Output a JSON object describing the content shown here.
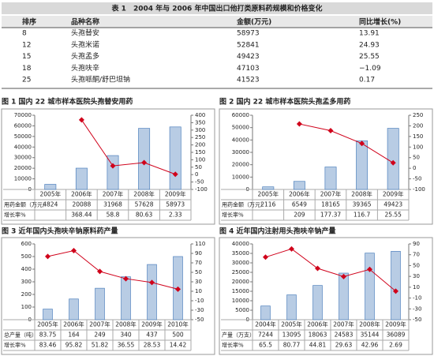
{
  "table": {
    "title": "表 1　2004 年与 2006 年中国出口他打类原料药规模和价格变化",
    "header": [
      "排序",
      "品种名称",
      "金额(万元)",
      "同比增长(%)"
    ],
    "rows": [
      [
        "8",
        "头孢替安",
        "58973",
        "13.91"
      ],
      [
        "12",
        "头孢米诺",
        "52841",
        "24.93"
      ],
      [
        "15",
        "头孢孟多",
        "49423",
        "25.55"
      ],
      [
        "18",
        "头孢呋辛",
        "47103",
        "−1.09"
      ],
      [
        "25",
        "头孢哌酮/舒巴坦钠",
        "41523",
        "0.17"
      ]
    ]
  },
  "chart_data": [
    {
      "type": "bar-line",
      "title": "图 1  国内 22 城市样本医院头孢替安用药",
      "categories": [
        "2005年",
        "2006年",
        "2007年",
        "2008年",
        "2009年"
      ],
      "series": [
        {
          "name": "用药金额（万元）",
          "color": "#b8cce4",
          "values": [
            4824,
            20088,
            31968,
            57628,
            58973
          ]
        },
        {
          "name": "增长率%",
          "color": "#d0021b",
          "axis": "y2",
          "values": [
            null,
            368.44,
            58.8,
            80.63,
            2.33
          ]
        }
      ],
      "ylim": [
        0,
        70000
      ],
      "yticks": [
        0,
        10000,
        20000,
        30000,
        40000,
        50000,
        60000,
        70000
      ],
      "y2lim": [
        -100,
        400
      ],
      "y2ticks": [
        -100,
        -50,
        0,
        50,
        100,
        150,
        200,
        250,
        300,
        350,
        400
      ]
    },
    {
      "type": "bar-line",
      "title": "图 2  国内 22 城市样本医院头孢孟多用药",
      "categories": [
        "2005年",
        "2006年",
        "2007年",
        "2008年",
        "2009年"
      ],
      "series": [
        {
          "name": "用药金额（万元）",
          "color": "#b8cce4",
          "values": [
            2116,
            6549,
            18165,
            39365,
            49423
          ]
        },
        {
          "name": "增长率%",
          "color": "#d0021b",
          "axis": "y2",
          "values": [
            null,
            209,
            177.37,
            116.7,
            25.55
          ]
        }
      ],
      "ylim": [
        0,
        60000
      ],
      "yticks": [
        0,
        10000,
        20000,
        30000,
        40000,
        50000,
        60000
      ],
      "y2lim": [
        -100,
        250
      ],
      "y2ticks": [
        -100,
        -50,
        0,
        50,
        100,
        150,
        200,
        250
      ]
    },
    {
      "type": "bar-line",
      "title": "图 3  近年国内头孢呋辛钠原料药产量",
      "categories": [
        "2005年",
        "2006年",
        "2007年",
        "2008年",
        "2009年",
        "2010年"
      ],
      "series": [
        {
          "name": "总产量（吨）",
          "color": "#b8cce4",
          "values": [
            83.75,
            164,
            249,
            340,
            437,
            500
          ]
        },
        {
          "name": "增长率%",
          "color": "#d0021b",
          "axis": "y2",
          "values": [
            83.46,
            95.82,
            51.82,
            36.55,
            28.53,
            14.42
          ]
        }
      ],
      "ylim": [
        0,
        600
      ],
      "yticks": [
        0,
        100,
        200,
        300,
        400,
        500,
        600
      ],
      "y2lim": [
        -50,
        110
      ],
      "y2ticks": [
        -50,
        -30,
        -10,
        10,
        30,
        50,
        70,
        90,
        110
      ]
    },
    {
      "type": "bar-line",
      "title": "图 4  近年国内注射用头孢呋辛钠产量",
      "categories": [
        "2004年",
        "2005年",
        "2006年",
        "2007年",
        "2008年",
        "2009年"
      ],
      "series": [
        {
          "name": "产量（万支）",
          "color": "#b8cce4",
          "values": [
            7244,
            13095,
            18063,
            24583,
            35144,
            36089
          ]
        },
        {
          "name": "增长率%",
          "color": "#d0021b",
          "axis": "y2",
          "values": [
            65.5,
            80.77,
            44.81,
            29.63,
            42.96,
            2.69
          ]
        }
      ],
      "ylim": [
        0,
        40000
      ],
      "yticks": [
        0,
        5000,
        10000,
        15000,
        20000,
        25000,
        30000,
        35000,
        40000
      ],
      "y2lim": [
        -50,
        90
      ],
      "y2ticks": [
        -50,
        -30,
        -10,
        10,
        30,
        50,
        70,
        90
      ]
    }
  ]
}
